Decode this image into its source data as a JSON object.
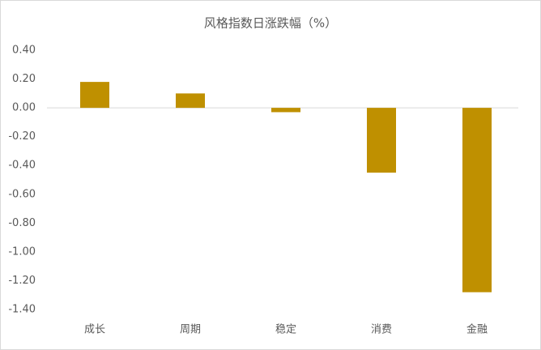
{
  "chart_data": {
    "type": "bar",
    "title": "风格指数日涨跌幅（%）",
    "categories": [
      "成长",
      "周期",
      "稳定",
      "消费",
      "金融"
    ],
    "values": [
      0.18,
      0.1,
      -0.03,
      -0.45,
      -1.28
    ],
    "color": "#bf9000",
    "ylim": [
      -1.4,
      0.4
    ],
    "yticks": [
      {
        "value": 0.4,
        "label": "0.40"
      },
      {
        "value": 0.2,
        "label": "0.20"
      },
      {
        "value": 0,
        "label": "0.00"
      },
      {
        "value": -0.2,
        "label": "-0.20"
      },
      {
        "value": -0.4,
        "label": "-0.40"
      },
      {
        "value": -0.6,
        "label": "-0.60"
      },
      {
        "value": -0.8,
        "label": "-0.80"
      },
      {
        "value": -1.0,
        "label": "-1.00"
      },
      {
        "value": -1.2,
        "label": "-1.20"
      },
      {
        "value": -1.4,
        "label": "-1.40"
      }
    ],
    "grid": false
  }
}
